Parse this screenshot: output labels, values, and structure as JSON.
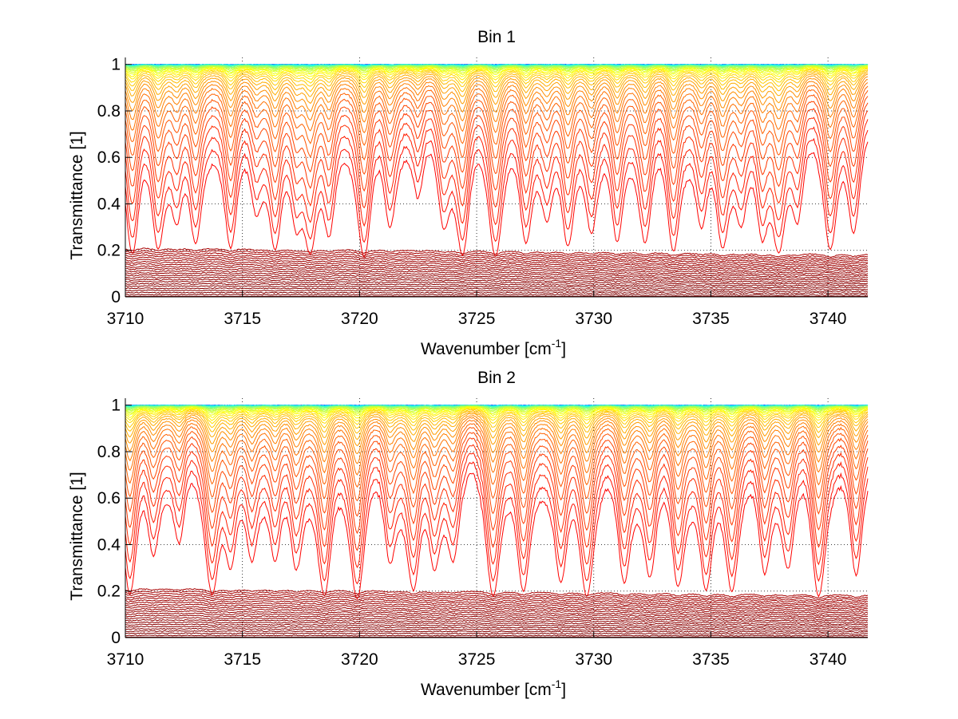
{
  "figure": {
    "window_background": "#ffffff"
  },
  "chart_data": [
    {
      "type": "line",
      "title": "Bin 1",
      "xlabel": "Wavenumber [cm",
      "xlabel_superscript": "-1",
      "xlabel_suffix": "]",
      "ylabel": "Transmittance [1]",
      "xlim": [
        3710,
        3741.7
      ],
      "ylim": [
        0,
        1.03
      ],
      "xticks": [
        3710,
        3715,
        3720,
        3725,
        3730,
        3735,
        3740
      ],
      "xtick_labels": [
        "3710",
        "3715",
        "3720",
        "3725",
        "3730",
        "3735",
        "3740"
      ],
      "yticks": [
        0,
        0.2,
        0.4,
        0.6,
        0.8,
        1
      ],
      "ytick_labels": [
        "0",
        "0.2",
        "0.4",
        "0.6",
        "0.8",
        "1"
      ],
      "grid": "dotted",
      "legend": "none",
      "colormap": "jet",
      "series_count": 60,
      "series_description": "Family of transmittance spectra; curves near 1 are blue/cyan/green/yellow, mid-range orange, low (<0.25) dark red",
      "absorption_lines": [
        {
          "x": 3710.3,
          "depth": 1.0
        },
        {
          "x": 3711.4,
          "depth": 0.8
        },
        {
          "x": 3712.2,
          "depth": 0.5
        },
        {
          "x": 3713.0,
          "depth": 0.8
        },
        {
          "x": 3714.5,
          "depth": 0.9
        },
        {
          "x": 3715.6,
          "depth": 0.4
        },
        {
          "x": 3716.4,
          "depth": 0.85
        },
        {
          "x": 3717.3,
          "depth": 0.5
        },
        {
          "x": 3717.9,
          "depth": 0.8
        },
        {
          "x": 3718.7,
          "depth": 0.7
        },
        {
          "x": 3720.2,
          "depth": 1.0
        },
        {
          "x": 3721.3,
          "depth": 0.6
        },
        {
          "x": 3722.5,
          "depth": 0.4
        },
        {
          "x": 3723.6,
          "depth": 0.55
        },
        {
          "x": 3724.4,
          "depth": 0.95
        },
        {
          "x": 3725.8,
          "depth": 0.95
        },
        {
          "x": 3727.1,
          "depth": 0.8
        },
        {
          "x": 3728.0,
          "depth": 0.45
        },
        {
          "x": 3728.9,
          "depth": 0.85
        },
        {
          "x": 3729.9,
          "depth": 0.6
        },
        {
          "x": 3731.0,
          "depth": 0.8
        },
        {
          "x": 3732.2,
          "depth": 0.75
        },
        {
          "x": 3733.4,
          "depth": 0.9
        },
        {
          "x": 3734.6,
          "depth": 0.6
        },
        {
          "x": 3735.5,
          "depth": 0.8
        },
        {
          "x": 3736.3,
          "depth": 0.5
        },
        {
          "x": 3737.2,
          "depth": 0.7
        },
        {
          "x": 3737.9,
          "depth": 0.8
        },
        {
          "x": 3738.7,
          "depth": 0.55
        },
        {
          "x": 3740.1,
          "depth": 0.85
        },
        {
          "x": 3741.1,
          "depth": 0.75
        }
      ],
      "low_band_level": 0.2,
      "top_level": 1.0
    },
    {
      "type": "line",
      "title": "Bin 2",
      "xlabel": "Wavenumber [cm",
      "xlabel_superscript": "-1",
      "xlabel_suffix": "]",
      "ylabel": "Transmittance [1]",
      "xlim": [
        3710,
        3741.7
      ],
      "ylim": [
        0,
        1.03
      ],
      "xticks": [
        3710,
        3715,
        3720,
        3725,
        3730,
        3735,
        3740
      ],
      "xtick_labels": [
        "3710",
        "3715",
        "3720",
        "3725",
        "3730",
        "3735",
        "3740"
      ],
      "yticks": [
        0,
        0.2,
        0.4,
        0.6,
        0.8,
        1
      ],
      "ytick_labels": [
        "0",
        "0.2",
        "0.4",
        "0.6",
        "0.8",
        "1"
      ],
      "grid": "dotted",
      "legend": "none",
      "colormap": "jet",
      "series_count": 60,
      "series_description": "Family of transmittance spectra; curves near 1 are blue/cyan/green/yellow, mid-range orange, low (<0.25) dark red",
      "absorption_lines": [
        {
          "x": 3710.2,
          "depth": 1.0
        },
        {
          "x": 3711.2,
          "depth": 0.5
        },
        {
          "x": 3712.3,
          "depth": 0.45
        },
        {
          "x": 3713.7,
          "depth": 0.9
        },
        {
          "x": 3714.5,
          "depth": 0.6
        },
        {
          "x": 3715.4,
          "depth": 0.5
        },
        {
          "x": 3716.4,
          "depth": 0.55
        },
        {
          "x": 3717.3,
          "depth": 0.6
        },
        {
          "x": 3718.5,
          "depth": 1.0
        },
        {
          "x": 3719.9,
          "depth": 1.0
        },
        {
          "x": 3721.3,
          "depth": 0.55
        },
        {
          "x": 3722.3,
          "depth": 0.85
        },
        {
          "x": 3723.2,
          "depth": 0.6
        },
        {
          "x": 3724.0,
          "depth": 0.5
        },
        {
          "x": 3725.7,
          "depth": 0.95
        },
        {
          "x": 3727.0,
          "depth": 0.95
        },
        {
          "x": 3728.6,
          "depth": 0.8
        },
        {
          "x": 3729.7,
          "depth": 0.95
        },
        {
          "x": 3731.3,
          "depth": 0.8
        },
        {
          "x": 3732.4,
          "depth": 0.7
        },
        {
          "x": 3733.6,
          "depth": 0.8
        },
        {
          "x": 3734.8,
          "depth": 0.9
        },
        {
          "x": 3735.9,
          "depth": 0.85
        },
        {
          "x": 3737.3,
          "depth": 0.7
        },
        {
          "x": 3738.3,
          "depth": 0.6
        },
        {
          "x": 3739.6,
          "depth": 1.0
        },
        {
          "x": 3741.2,
          "depth": 0.8
        }
      ],
      "low_band_level": 0.2,
      "top_level": 1.0
    }
  ]
}
